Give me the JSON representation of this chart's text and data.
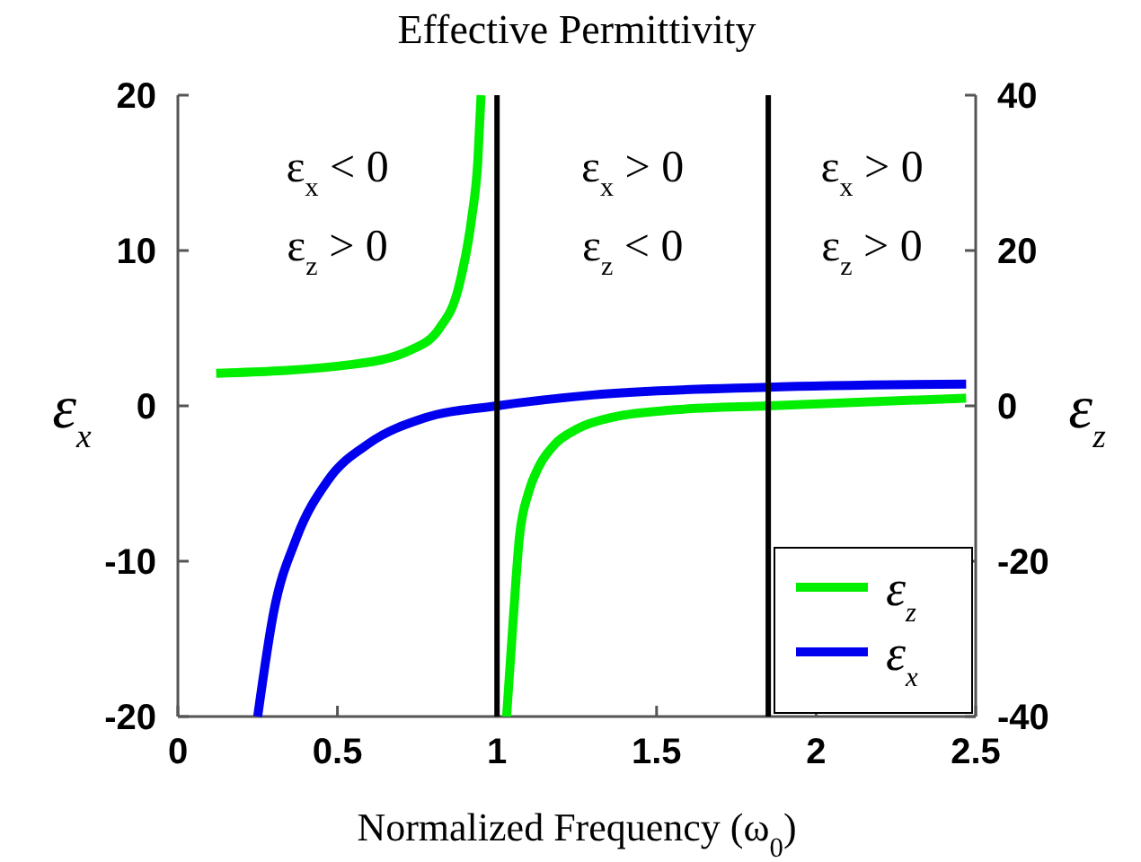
{
  "chart_data": {
    "type": "line",
    "title": "Effective Permittivity",
    "xlabel": "Normalized Frequency (ω$_{0}$)",
    "ylabel": "ε$_{x}$",
    "y2label": "ε$_{z}$",
    "xlim": [
      0,
      2.5
    ],
    "xticks": [
      0,
      0.5,
      1,
      1.5,
      2,
      2.5
    ],
    "ylim": [
      -20,
      20
    ],
    "yticks": [
      -20,
      -10,
      0,
      10,
      20
    ],
    "y2lim": [
      -40,
      40
    ],
    "y2ticks": [
      -40,
      -20,
      0,
      20,
      40
    ],
    "series": [
      {
        "name": "ε$_{z}$",
        "color": "#00ee00",
        "axis": "y2",
        "x": [
          0.12,
          0.54,
          0.73,
          0.82,
          0.88,
          0.92,
          0.94,
          0.95
        ],
        "values": [
          4.2,
          5.3,
          7.2,
          10,
          15.3,
          24,
          31.6,
          40
        ]
      },
      {
        "color": "#00ee00",
        "axis": "y2",
        "x": [
          1.03,
          1.05,
          1.07,
          1.1,
          1.13,
          1.18,
          1.25,
          1.37,
          1.56,
          1.85,
          2.47
        ],
        "values": [
          -40,
          -28,
          -17,
          -11,
          -7.9,
          -5,
          -3,
          -1.4,
          -0.5,
          0,
          1
        ]
      },
      {
        "name": "ε$_{x}$",
        "color": "#0000ee",
        "x": [
          0.25,
          0.3,
          0.37,
          0.47,
          0.6,
          0.77,
          1,
          1.3,
          1.85,
          2.47
        ],
        "values": [
          -20,
          -13.3,
          -8.6,
          -4.8,
          -2.4,
          -0.8,
          0,
          0.7,
          1.2,
          1.4
        ]
      }
    ],
    "ref_lines": [
      {
        "axis": "x",
        "value": 1,
        "color": "#000000"
      },
      {
        "axis": "x",
        "value": 1.85,
        "color": "#000000"
      }
    ],
    "annotations": [
      "ε$_{x}$ < 0",
      "ε$_{z}$ > 0",
      "ε$_{x}$ > 0",
      "ε$_{z}$ < 0",
      "ε$_{x}$ > 0",
      "ε$_{z}$ > 0"
    ],
    "legend": "bottom right",
    "grid": false,
    "marker": "none",
    "line_style": "solid"
  }
}
